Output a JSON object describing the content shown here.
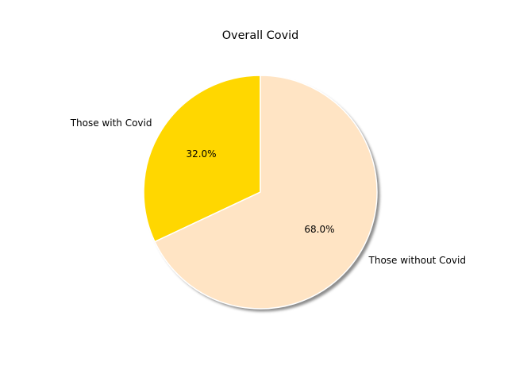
{
  "chart_data": {
    "type": "pie",
    "title": "Overall Covid",
    "labels": [
      "Those with Covid",
      "Those without Covid"
    ],
    "values": [
      32.0,
      68.0
    ],
    "percent_labels": [
      "32.0%",
      "68.0%"
    ],
    "colors": [
      "#ffd700",
      "#ffe4c4"
    ],
    "start_angle_deg": 90,
    "direction": "counterclockwise",
    "shadow": true,
    "edge_color": "#ffffff"
  }
}
